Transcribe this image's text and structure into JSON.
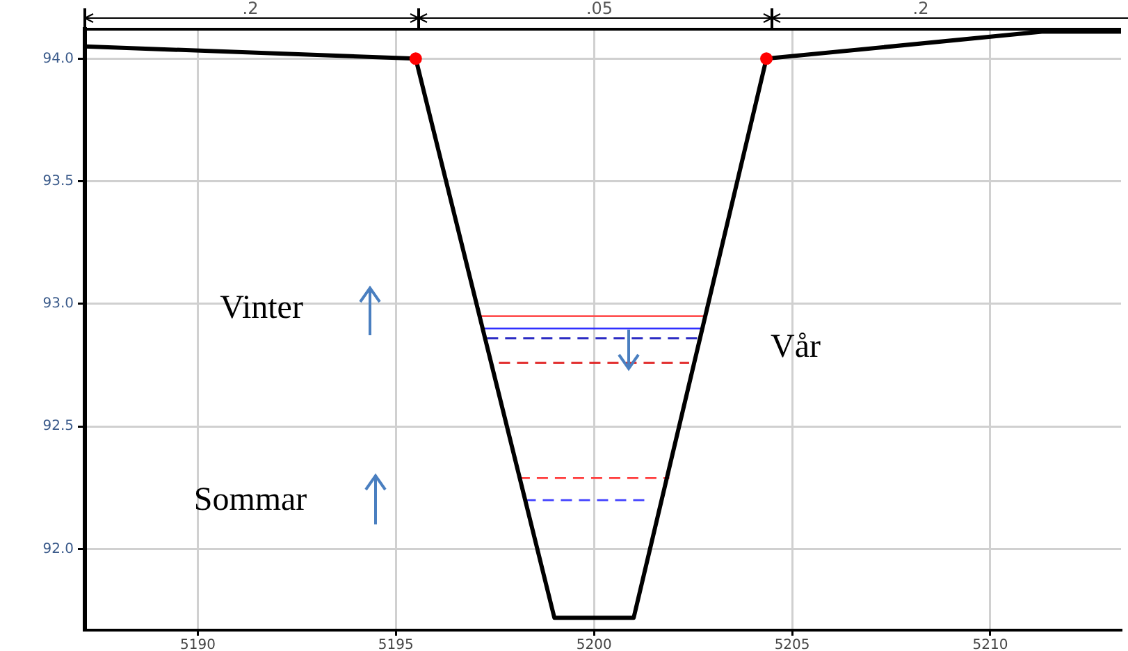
{
  "chart_data": {
    "type": "line",
    "xlim": [
      5187.15,
      5213.3
    ],
    "xticks": [
      5190,
      5195,
      5200,
      5205,
      5210
    ],
    "ylim": [
      91.67,
      94.12
    ],
    "yticks": [
      {
        "value": 92.0,
        "label": "92.0"
      },
      {
        "value": 92.5,
        "label": "92.5"
      },
      {
        "value": 93.0,
        "label": "93.0"
      },
      {
        "value": 93.5,
        "label": "93.5"
      },
      {
        "value": 94.0,
        "label": "94.0"
      }
    ],
    "grid": true,
    "legend": false,
    "series": [
      {
        "type": "line",
        "color": "#000000",
        "marker": "none",
        "line_style": "solid",
        "x": [
          5187.15,
          5195.5,
          5199.0,
          5201.0,
          5204.35,
          5211.3,
          5213.3
        ],
        "values": [
          94.05,
          94.0,
          91.72,
          91.72,
          94.0,
          94.11,
          94.11
        ]
      },
      {
        "type": "scatter",
        "color": "#ff0000",
        "marker": "circle",
        "x": [
          5195.5,
          5204.35
        ],
        "values": [
          94.0,
          94.0
        ]
      },
      {
        "type": "line",
        "color": "#ff5050",
        "marker": "none",
        "line_style": "solid",
        "x": [
          5197.1,
          5202.8
        ],
        "values": [
          92.95,
          92.95
        ]
      },
      {
        "type": "line",
        "color": "#3030ff",
        "marker": "none",
        "line_style": "solid",
        "x": [
          5197.2,
          5202.75
        ],
        "values": [
          92.9,
          92.9
        ]
      },
      {
        "type": "line",
        "color": "#2020c0",
        "marker": "none",
        "line_style": "dashed",
        "x": [
          5197.3,
          5202.6
        ],
        "values": [
          92.86,
          92.86
        ]
      },
      {
        "type": "line",
        "color": "#e02020",
        "marker": "none",
        "line_style": "dashed",
        "x": [
          5197.6,
          5202.4
        ],
        "values": [
          92.76,
          92.76
        ]
      },
      {
        "type": "line",
        "color": "#ff4040",
        "marker": "none",
        "line_style": "dashed",
        "x": [
          5198.1,
          5201.9
        ],
        "values": [
          92.29,
          92.29
        ]
      },
      {
        "type": "line",
        "color": "#4040ff",
        "marker": "none",
        "line_style": "dashed",
        "x": [
          5198.25,
          5201.3
        ],
        "values": [
          92.2,
          92.2
        ]
      }
    ],
    "annotations": [
      ".2",
      ".05",
      ".2",
      "Vinter",
      "Vår",
      "Sommar"
    ]
  }
}
